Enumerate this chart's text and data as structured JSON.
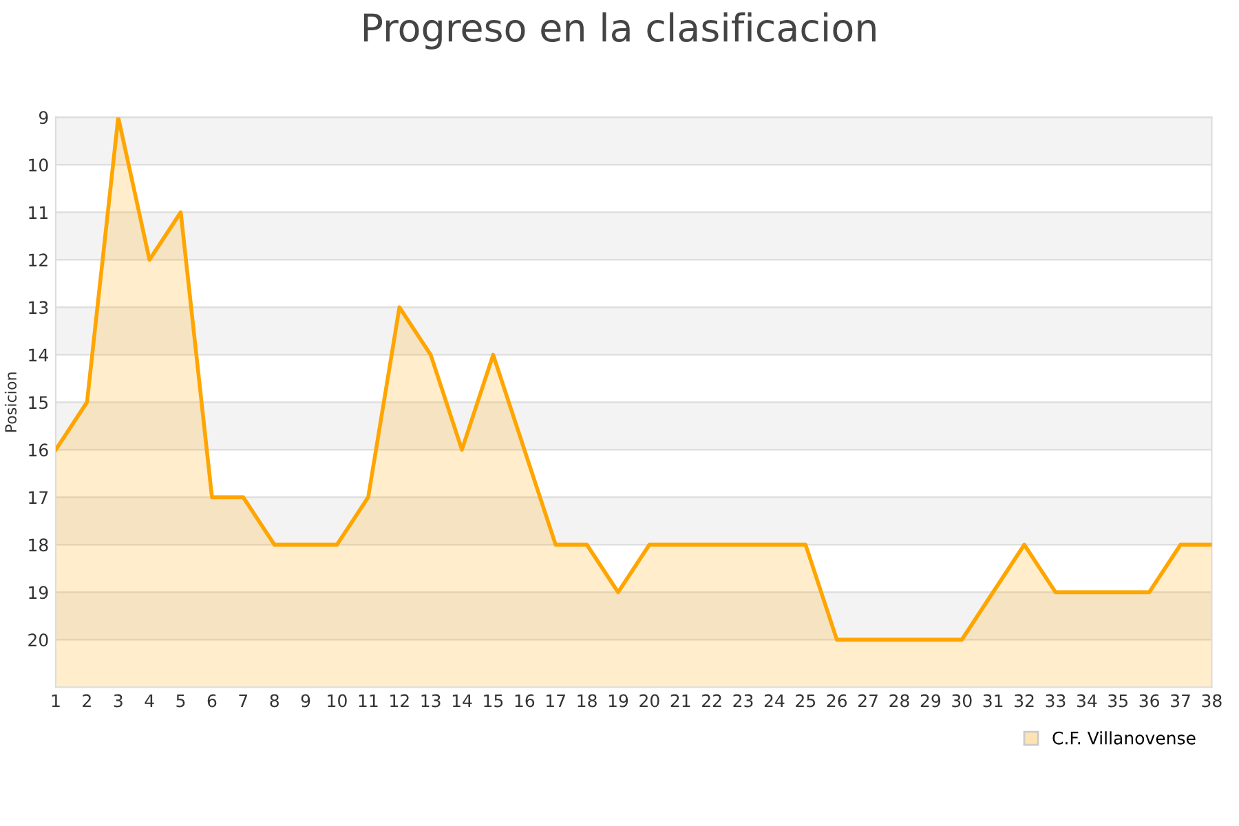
{
  "chart_data": {
    "type": "area",
    "title": "Progreso en la clasificacion",
    "ylabel": "Posicion",
    "x": [
      1,
      2,
      3,
      4,
      5,
      6,
      7,
      8,
      9,
      10,
      11,
      12,
      13,
      14,
      15,
      16,
      17,
      18,
      19,
      20,
      21,
      22,
      23,
      24,
      25,
      26,
      27,
      28,
      29,
      30,
      31,
      32,
      33,
      34,
      35,
      36,
      37,
      38
    ],
    "series": [
      {
        "name": "C.F. Villanovense",
        "color": "#ffa500",
        "values": [
          16,
          15,
          9,
          12,
          11,
          17,
          17,
          18,
          18,
          18,
          17,
          13,
          14,
          16,
          14,
          16,
          18,
          18,
          19,
          18,
          18,
          18,
          18,
          18,
          18,
          20,
          20,
          20,
          20,
          20,
          19,
          18,
          19,
          19,
          19,
          19,
          18,
          18
        ]
      }
    ],
    "xlim": [
      1,
      38
    ],
    "xticks": [
      1,
      2,
      3,
      4,
      5,
      6,
      7,
      8,
      9,
      10,
      11,
      12,
      13,
      14,
      15,
      16,
      17,
      18,
      19,
      20,
      21,
      22,
      23,
      24,
      25,
      26,
      27,
      28,
      29,
      30,
      31,
      32,
      33,
      34,
      35,
      36,
      37,
      38
    ],
    "ylim": [
      21,
      9
    ],
    "yticks": [
      9,
      10,
      11,
      12,
      13,
      14,
      15,
      16,
      17,
      18,
      19,
      20
    ],
    "grid": "y",
    "legend": "bottom right"
  }
}
